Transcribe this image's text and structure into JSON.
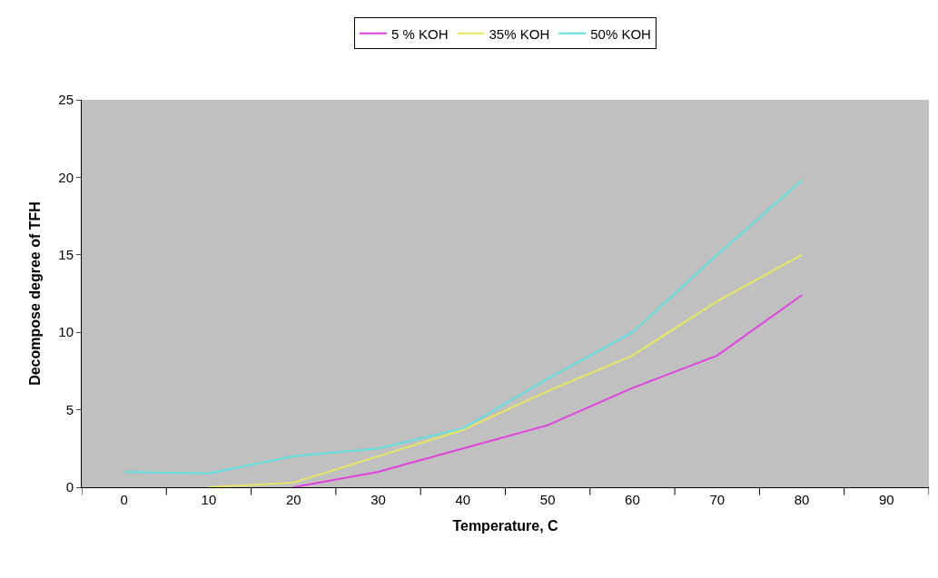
{
  "chart_data": {
    "type": "line",
    "xlabel": "Temperature, C",
    "ylabel": "Decompose degree of TFH",
    "categories": [
      "0",
      "10",
      "20",
      "30",
      "40",
      "50",
      "60",
      "70",
      "80",
      "90"
    ],
    "series": [
      {
        "name": "5 % KOH",
        "color": "#e040e0",
        "values": [
          null,
          null,
          0,
          1,
          2.5,
          4,
          6.4,
          8.5,
          12.4,
          null
        ]
      },
      {
        "name": "35% KOH",
        "color": "#e8e860",
        "values": [
          null,
          0,
          0.3,
          2,
          3.7,
          6.2,
          8.5,
          12,
          15,
          null
        ]
      },
      {
        "name": "50% KOH",
        "color": "#60e0e0",
        "values": [
          1,
          0.9,
          2,
          2.5,
          3.8,
          7,
          10,
          15,
          19.8,
          null
        ]
      }
    ],
    "ylim": [
      0,
      25
    ],
    "yticks": [
      0,
      5,
      10,
      15,
      20,
      25
    ],
    "grid": false,
    "legend": "top",
    "marker": "none",
    "line_style": "solid"
  }
}
